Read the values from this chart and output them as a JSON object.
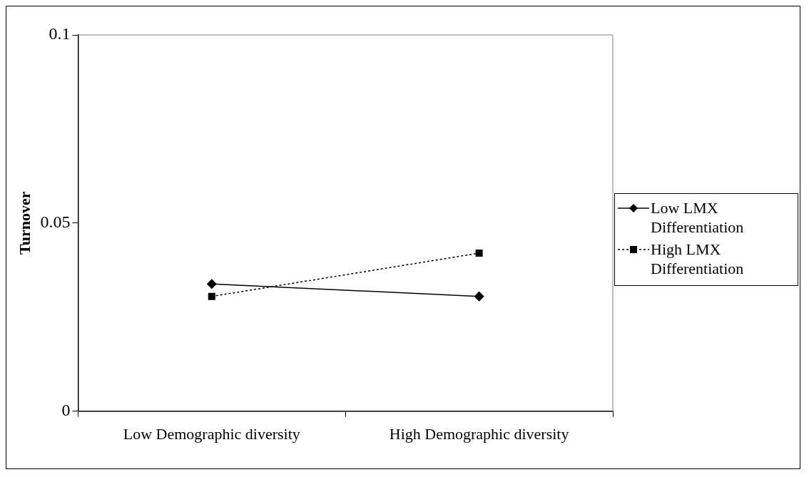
{
  "chart_data": {
    "type": "line",
    "ylabel": "Turnover",
    "categories": [
      "Low Demographic diversity",
      "High Demographic diversity"
    ],
    "series": [
      {
        "name": "Low LMX Differentiation",
        "color": "#000000",
        "values": [
          0.0338,
          0.0305
        ],
        "marker": "diamond",
        "line_style": "solid"
      },
      {
        "name": "High LMX Differentiation",
        "color": "#000000",
        "values": [
          0.0305,
          0.042
        ],
        "marker": "square",
        "line_style": "dotted"
      }
    ],
    "ylim": [
      0,
      0.1
    ],
    "yticks": [
      0,
      0.05,
      0.1
    ],
    "grid": false,
    "legend": "right"
  }
}
